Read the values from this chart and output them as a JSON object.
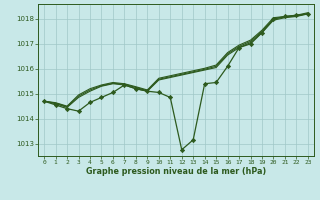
{
  "bg_color": "#c8e8e8",
  "grid_color": "#a0c8c8",
  "line_color": "#2d5a1e",
  "marker_color": "#2d5a1e",
  "xlabel": "Graphe pression niveau de la mer (hPa)",
  "ylim": [
    1012.5,
    1018.6
  ],
  "xlim": [
    -0.5,
    23.5
  ],
  "yticks": [
    1013,
    1014,
    1015,
    1016,
    1017,
    1018
  ],
  "xticks": [
    0,
    1,
    2,
    3,
    4,
    5,
    6,
    7,
    8,
    9,
    10,
    11,
    12,
    13,
    14,
    15,
    16,
    17,
    18,
    19,
    20,
    21,
    22,
    23
  ],
  "series": [
    [
      1014.7,
      1014.55,
      1014.4,
      1014.3,
      1014.65,
      1014.85,
      1015.05,
      1015.35,
      1015.2,
      1015.1,
      1015.05,
      1014.85,
      1012.75,
      1013.15,
      1015.4,
      1015.45,
      1016.1,
      1016.85,
      1017.0,
      1017.45,
      1018.0,
      1018.1,
      1018.15,
      1018.2
    ],
    [
      1014.7,
      1014.6,
      1014.45,
      1014.85,
      1015.1,
      1015.3,
      1015.4,
      1015.35,
      1015.2,
      1015.1,
      1015.55,
      1015.65,
      1015.75,
      1015.85,
      1015.95,
      1016.05,
      1016.55,
      1016.85,
      1017.05,
      1017.45,
      1017.95,
      1018.05,
      1018.1,
      1018.2
    ],
    [
      1014.7,
      1014.62,
      1014.48,
      1014.9,
      1015.15,
      1015.32,
      1015.42,
      1015.38,
      1015.25,
      1015.12,
      1015.58,
      1015.68,
      1015.78,
      1015.88,
      1015.98,
      1016.1,
      1016.6,
      1016.9,
      1017.1,
      1017.5,
      1018.0,
      1018.08,
      1018.12,
      1018.22
    ],
    [
      1014.7,
      1014.64,
      1014.5,
      1014.95,
      1015.2,
      1015.35,
      1015.45,
      1015.4,
      1015.28,
      1015.15,
      1015.62,
      1015.72,
      1015.82,
      1015.92,
      1016.02,
      1016.15,
      1016.65,
      1016.95,
      1017.15,
      1017.55,
      1018.05,
      1018.1,
      1018.15,
      1018.25
    ]
  ]
}
